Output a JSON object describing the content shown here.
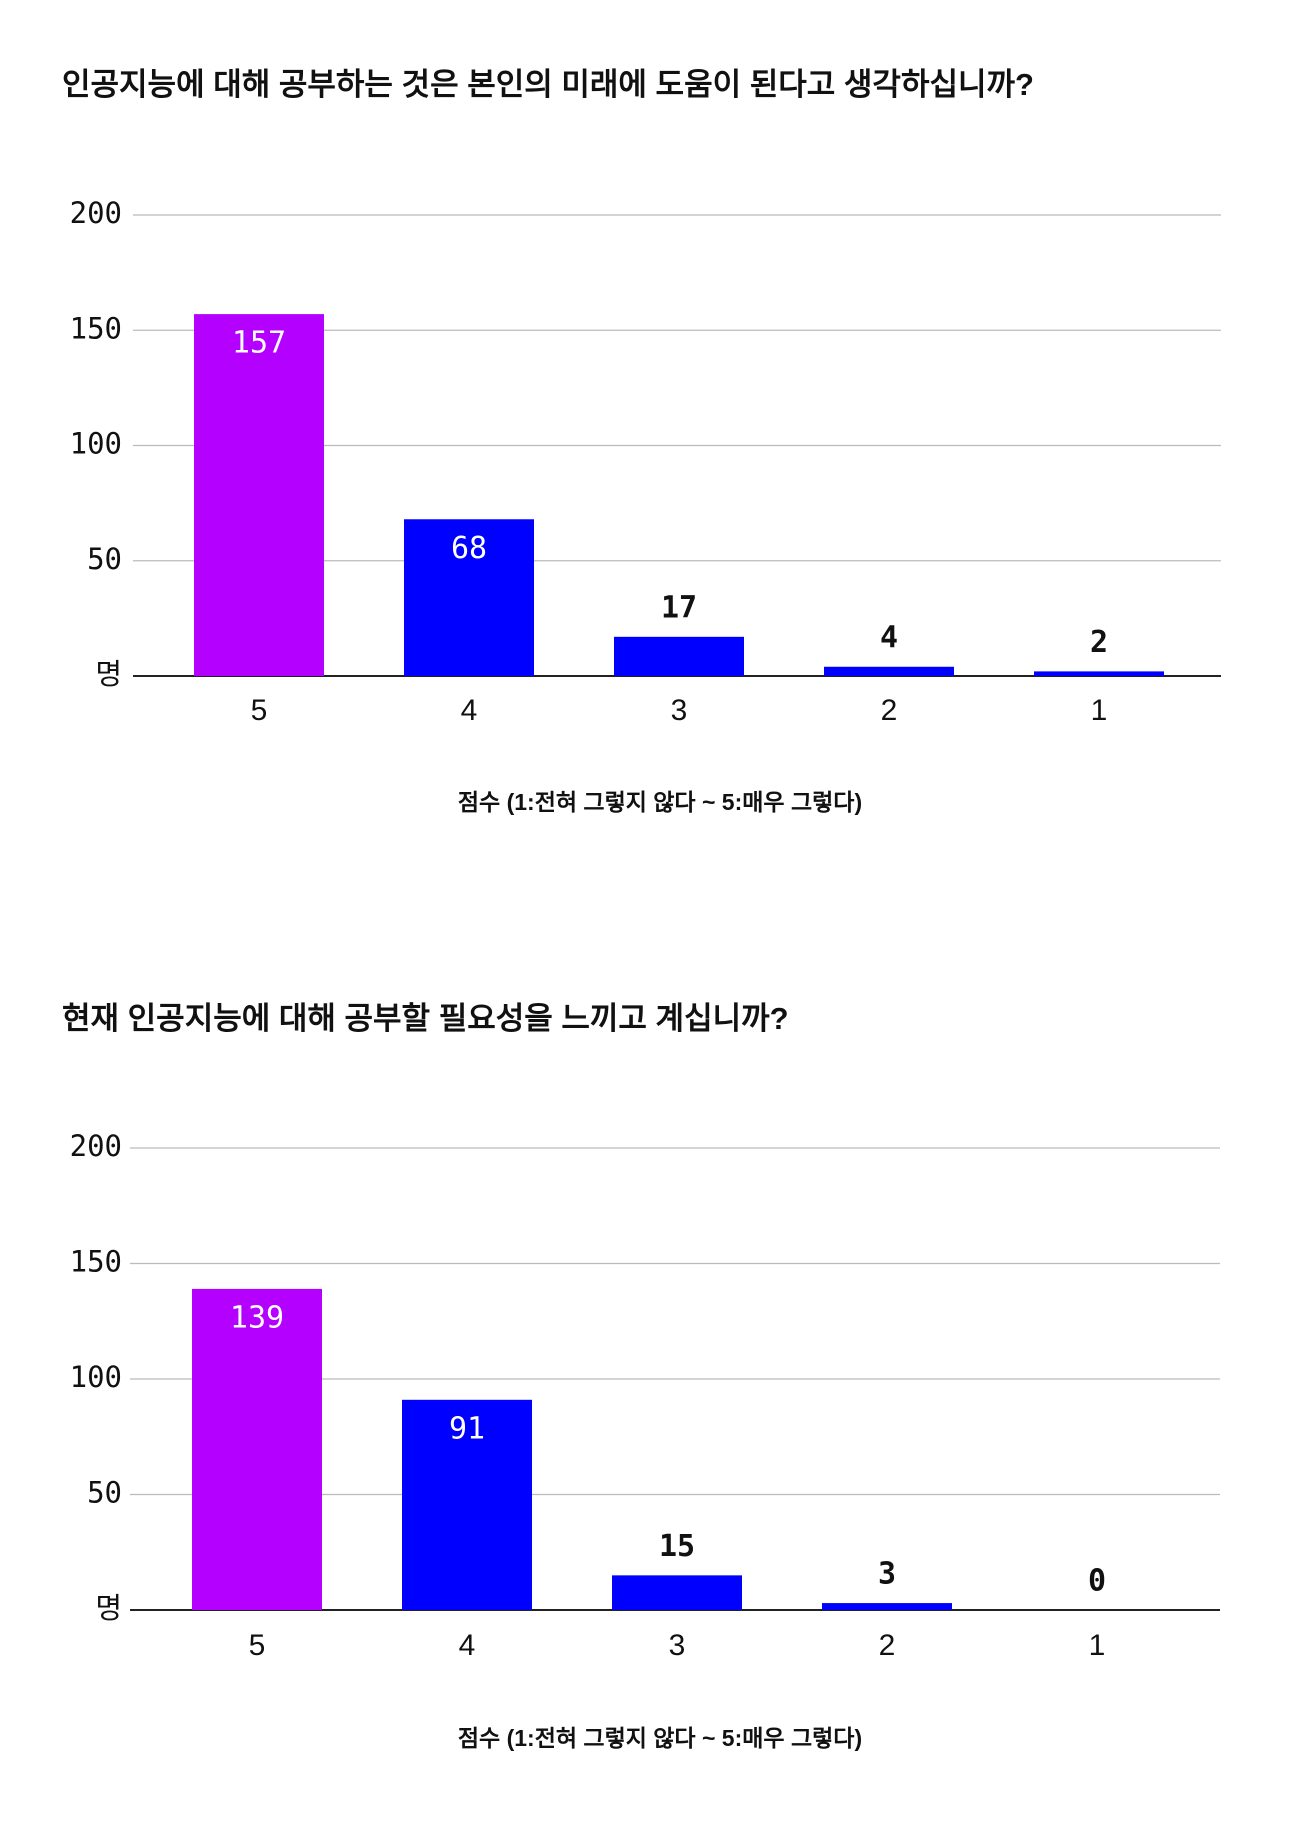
{
  "chart_data": [
    {
      "type": "bar",
      "title": "인공지능에 대해 공부하는 것은 본인의 미래에 도움이 된다고 생각하십니까?",
      "x_label": "점수 (1:전혀 그렇지 않다 ~ 5:매우 그렇다)",
      "categories": [
        "5",
        "4",
        "3",
        "2",
        "1"
      ],
      "values": [
        157,
        68,
        17,
        4,
        2
      ],
      "colors": [
        "#b400ff",
        "#0000ff",
        "#0000ff",
        "#0000ff",
        "#0000ff"
      ],
      "ylim": [
        0,
        200
      ],
      "yticks": [
        {
          "value": 0,
          "label": "명"
        },
        50,
        100,
        150,
        200
      ],
      "grid": true
    },
    {
      "type": "bar",
      "title": "현재 인공지능에 대해 공부할 필요성을 느끼고 계십니까?",
      "x_label": "점수 (1:전혀 그렇지 않다 ~ 5:매우 그렇다)",
      "categories": [
        "5",
        "4",
        "3",
        "2",
        "1"
      ],
      "values": [
        139,
        91,
        15,
        3,
        0
      ],
      "colors": [
        "#b400ff",
        "#0000ff",
        "#0000ff",
        "#0000ff",
        "#0000ff"
      ],
      "ylim": [
        0,
        200
      ],
      "yticks": [
        {
          "value": 0,
          "label": "명"
        },
        50,
        100,
        150,
        200
      ],
      "grid": true
    }
  ]
}
